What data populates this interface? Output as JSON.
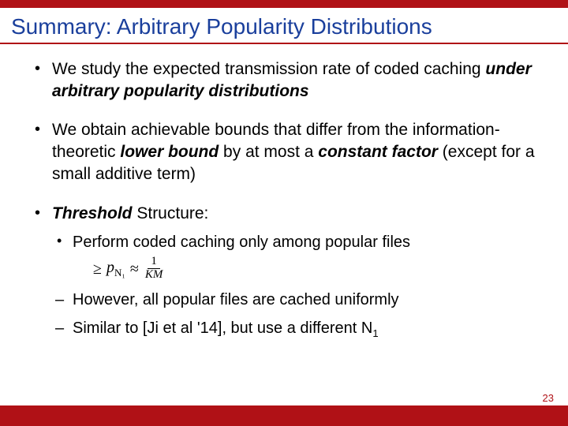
{
  "colors": {
    "accent": "#b01116",
    "title": "#1a3f9c",
    "text": "#000000",
    "pagenum": "#b01116",
    "background": "#ffffff"
  },
  "title": "Summary: Arbitrary Popularity Distributions",
  "bullets": {
    "b1_pre": "We study the expected transmission rate of coded caching ",
    "b1_em": "under arbitrary popularity distributions",
    "b2_pre": "We obtain achievable bounds that differ from the information-theoretic ",
    "b2_em1": "lower bound",
    "b2_mid": " by at most a ",
    "b2_em2": "constant factor",
    "b2_post": " (except for a small additive term)",
    "b3_em": "Threshold",
    "b3_post": " Structure:",
    "s1": "Perform coded caching only among popular files",
    "s2": "However, all popular files are cached uniformly",
    "s3_pre": "Similar to [Ji et al '14], but use a different ",
    "s3_n": "N",
    "s3_sub": "1"
  },
  "formula": {
    "geq": "≥",
    "p": "p",
    "psub": "N₁",
    "approx": "≈",
    "num": "1",
    "den": "KM"
  },
  "page": "23"
}
